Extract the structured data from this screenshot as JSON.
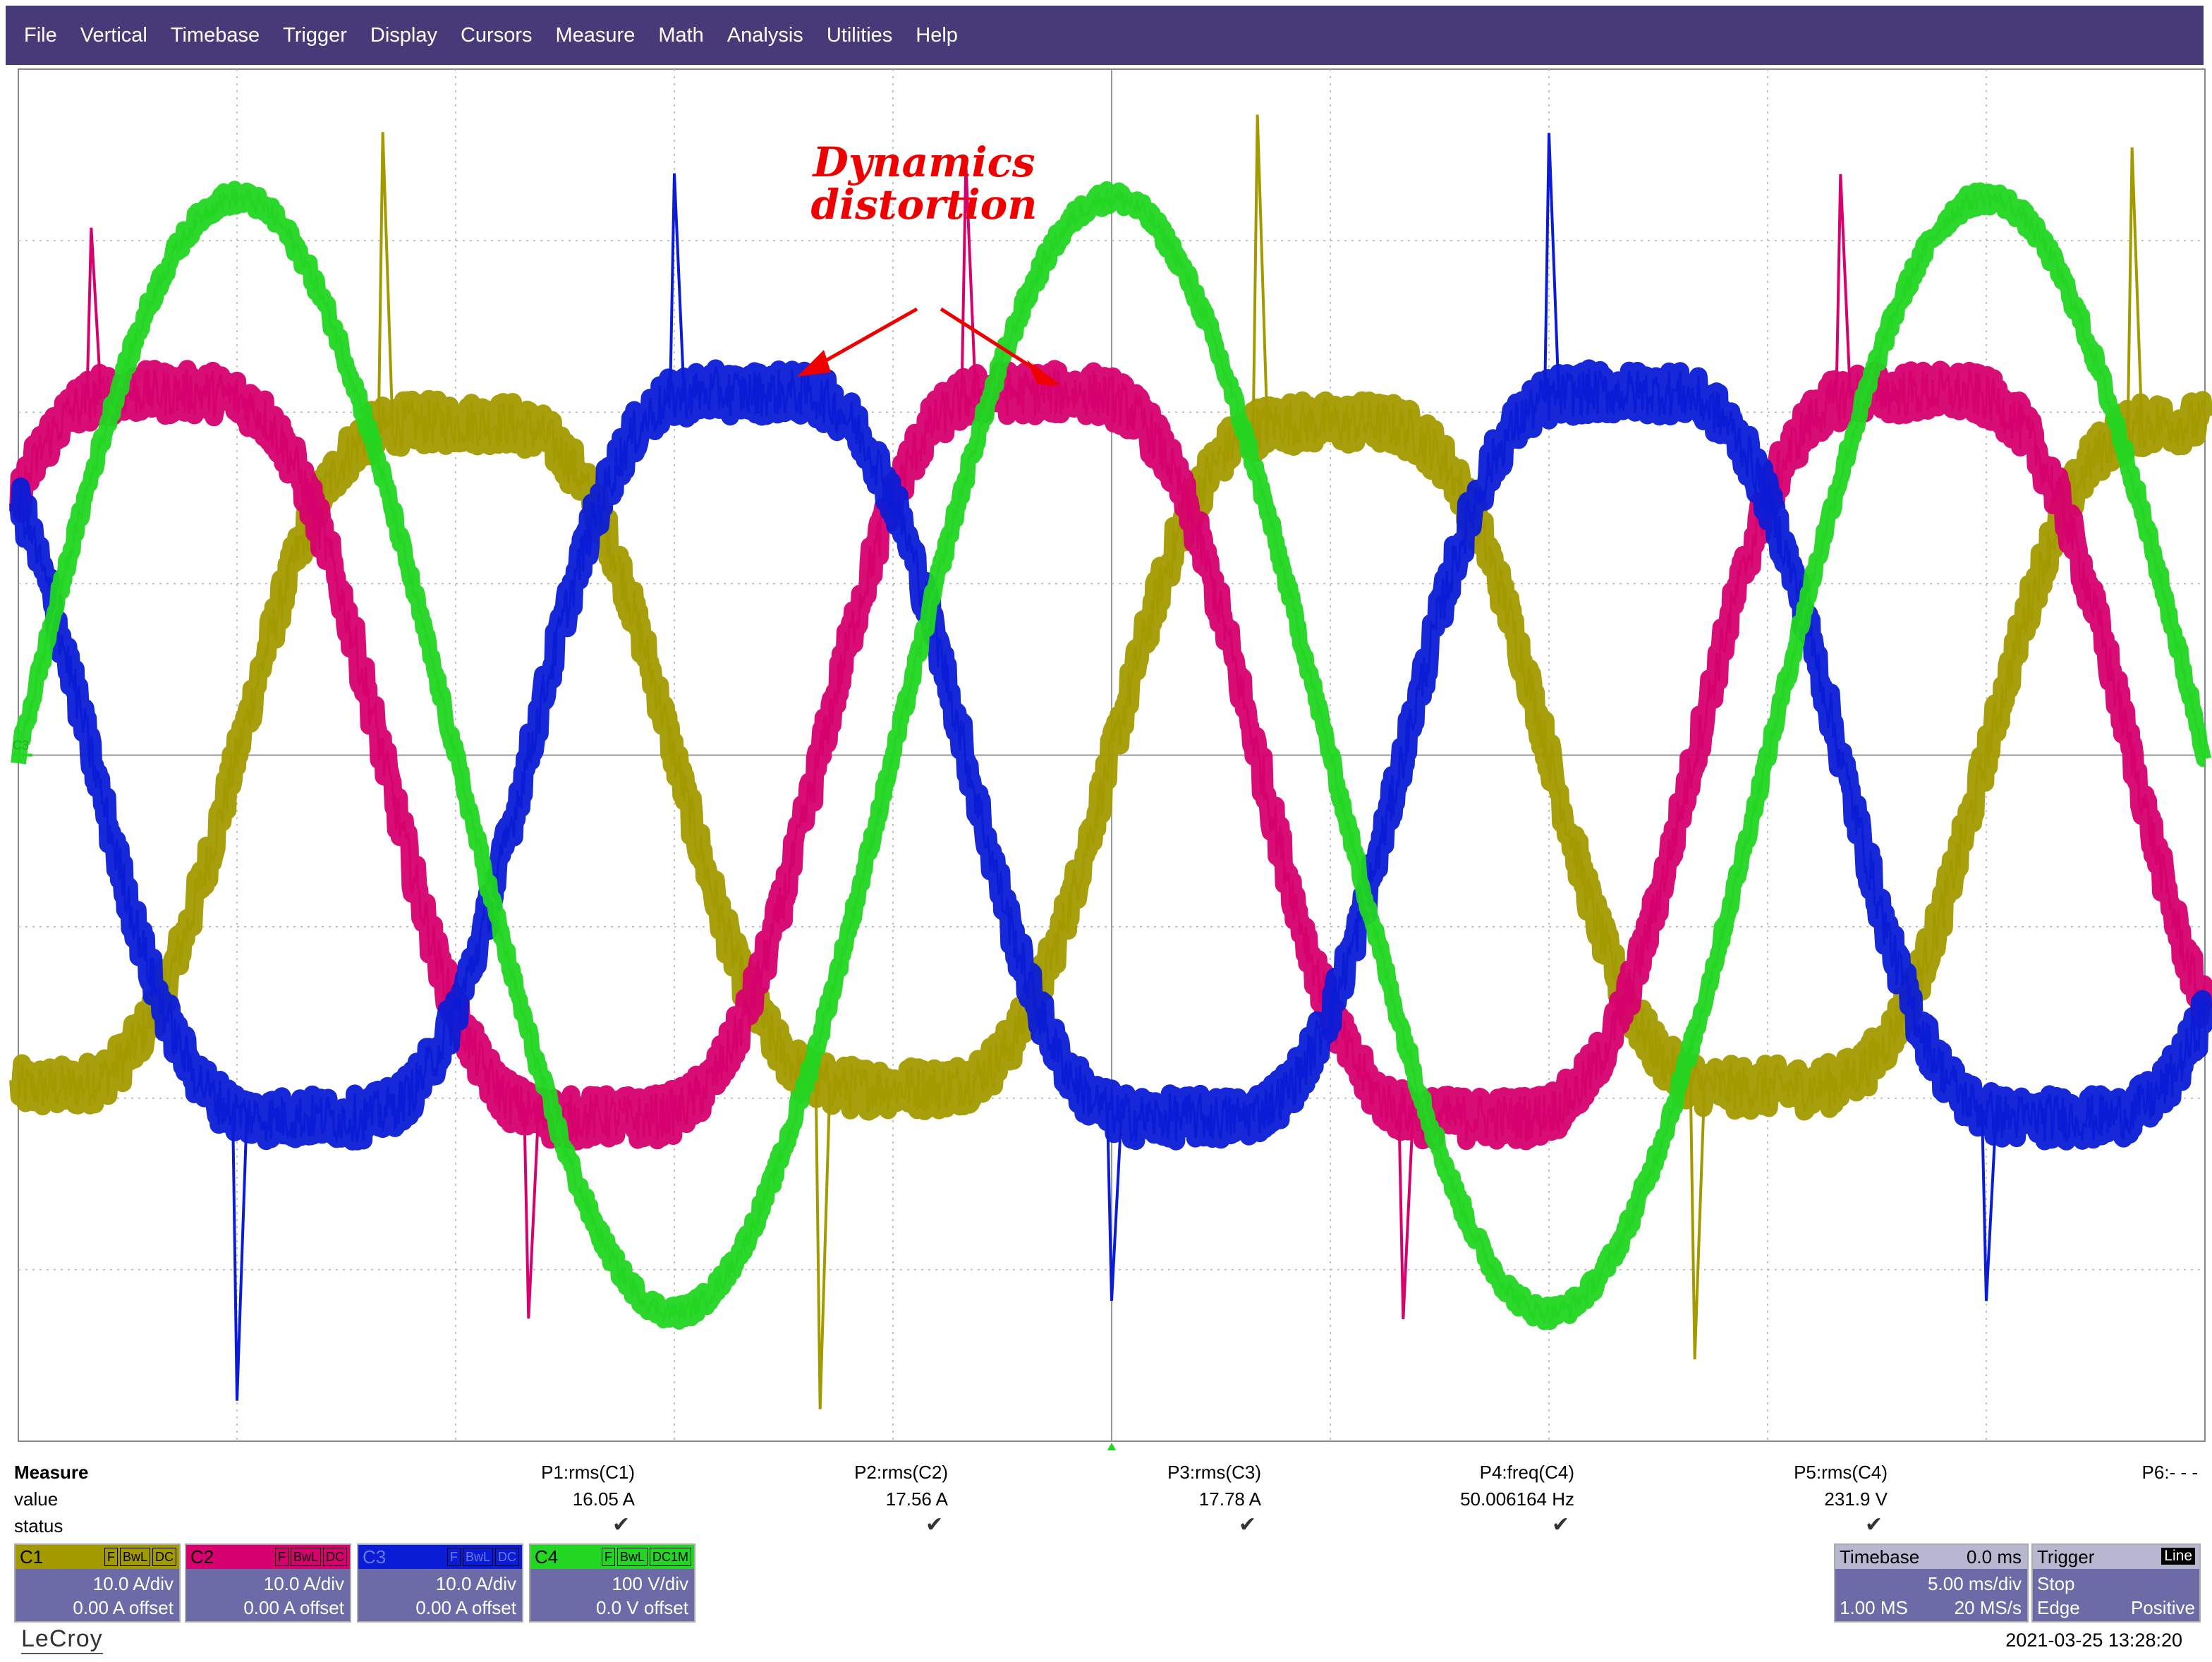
{
  "menu": [
    "File",
    "Vertical",
    "Timebase",
    "Trigger",
    "Display",
    "Cursors",
    "Measure",
    "Math",
    "Analysis",
    "Utilities",
    "Help"
  ],
  "annotation": {
    "line1": "Dynamics",
    "line2": "distortion",
    "color": "#ee0000"
  },
  "channel_marker": "C3",
  "measure": {
    "title": "Measure",
    "row_labels": [
      "value",
      "status"
    ],
    "params": [
      {
        "name": "P1:rms(C1)",
        "value": "16.05 A",
        "status": "ok"
      },
      {
        "name": "P2:rms(C2)",
        "value": "17.56 A",
        "status": "ok"
      },
      {
        "name": "P3:rms(C3)",
        "value": "17.78 A",
        "status": "ok"
      },
      {
        "name": "P4:freq(C4)",
        "value": "50.006164 Hz",
        "status": "ok"
      },
      {
        "name": "P5:rms(C4)",
        "value": "231.9 V",
        "status": "ok"
      },
      {
        "name": "P6:- - -",
        "value": "",
        "status": ""
      }
    ],
    "check_glyph": "✔"
  },
  "channels": [
    {
      "name": "C1",
      "color": "#a39a00",
      "tags": [
        "F",
        "BwL",
        "DC"
      ],
      "scale": "10.0 A/div",
      "offset": "0.00 A offset"
    },
    {
      "name": "C2",
      "color": "#d6006e",
      "tags": [
        "F",
        "BwL",
        "DC"
      ],
      "scale": "10.0 A/div",
      "offset": "0.00 A offset"
    },
    {
      "name": "C3",
      "color": "#0a1cd6",
      "tags": [
        "F",
        "BwL",
        "DC"
      ],
      "scale": "10.0 A/div",
      "offset": "0.00 A offset"
    },
    {
      "name": "C4",
      "color": "#22d622",
      "tags": [
        "F",
        "BwL",
        "DC1M"
      ],
      "scale": "100 V/div",
      "offset": "0.0 V offset"
    }
  ],
  "timebase": {
    "label": "Timebase",
    "delay": "0.0 ms",
    "scale": "5.00 ms/div",
    "samples": "1.00 MS",
    "rate": "20 MS/s"
  },
  "trigger": {
    "label": "Trigger",
    "source": "Line",
    "mode": "Stop",
    "type": "Edge",
    "slope": "Positive"
  },
  "brand": "LeCroy",
  "datetime": "2021-03-25 13:28:20",
  "chart_data": {
    "type": "line",
    "xlim": [
      -25,
      25
    ],
    "xunit": "ms",
    "grid": {
      "x_divisions": 10,
      "y_divisions": 8
    },
    "frequency_hz": 50,
    "series": [
      {
        "name": "C1",
        "unit": "A",
        "volts_per_div": 10,
        "amplitude_div": 2.2,
        "phase_deg": 0,
        "color": "#a39a00"
      },
      {
        "name": "C2",
        "unit": "A",
        "volts_per_div": 10,
        "amplitude_div": 2.4,
        "phase_deg": 120,
        "color": "#d6006e"
      },
      {
        "name": "C3",
        "unit": "A",
        "volts_per_div": 10,
        "amplitude_div": 2.4,
        "phase_deg": -120,
        "color": "#0a1cd6"
      },
      {
        "name": "C4",
        "unit": "V",
        "volts_per_div": 100,
        "amplitude_div": 3.25,
        "phase_deg": 90,
        "color": "#22d622"
      }
    ]
  }
}
